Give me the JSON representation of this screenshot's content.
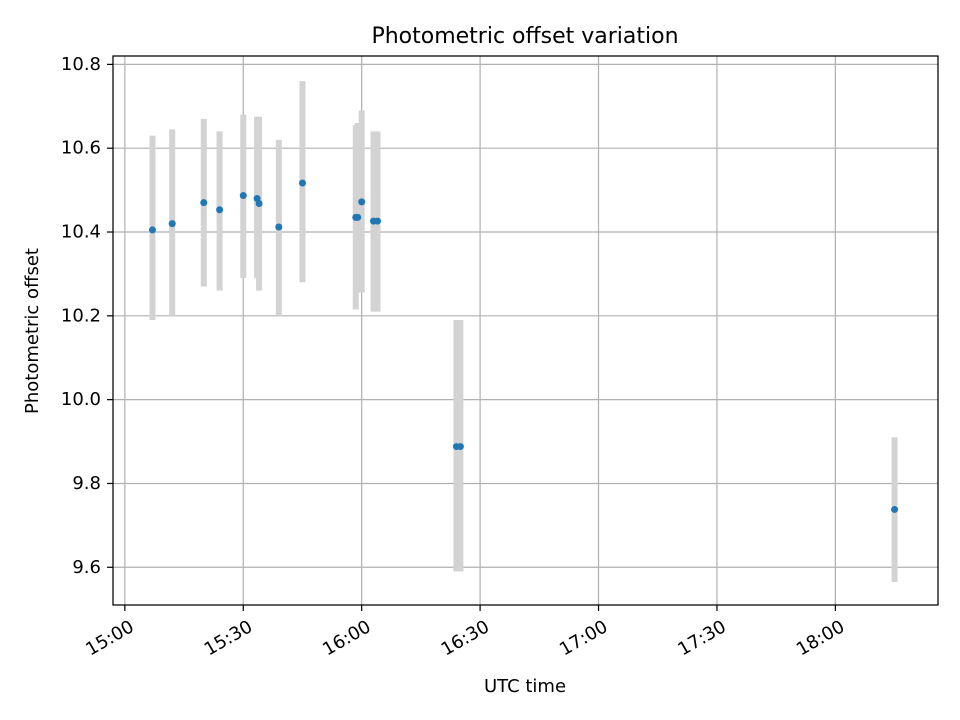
{
  "chart_data": {
    "type": "scatter",
    "title": "Photometric offset variation",
    "xlabel": "UTC time",
    "ylabel": "Photometric offset",
    "xlim": [
      "14:57",
      "18:26"
    ],
    "ylim": [
      9.51,
      10.82
    ],
    "x_ticks": [
      "15:00",
      "15:30",
      "16:00",
      "16:30",
      "17:00",
      "17:30",
      "18:00"
    ],
    "y_ticks": [
      "9.6",
      "9.8",
      "10.0",
      "10.2",
      "10.4",
      "10.6",
      "10.8"
    ],
    "grid": true,
    "colors": {
      "point": "#1f77b4",
      "errorbar": "#d3d3d3",
      "grid": "#b0b0b0",
      "axes": "#000000"
    },
    "series": [
      {
        "points": [
          {
            "x": "15:07",
            "y": 10.405,
            "y_low": 10.19,
            "y_high": 10.63
          },
          {
            "x": "15:12",
            "y": 10.42,
            "y_low": 10.2,
            "y_high": 10.645
          },
          {
            "x": "15:20",
            "y": 10.47,
            "y_low": 10.27,
            "y_high": 10.67
          },
          {
            "x": "15:24",
            "y": 10.453,
            "y_low": 10.26,
            "y_high": 10.64
          },
          {
            "x": "15:30",
            "y": 10.487,
            "y_low": 10.29,
            "y_high": 10.68
          },
          {
            "x": "15:33.5",
            "y": 10.48,
            "y_low": 10.29,
            "y_high": 10.675
          },
          {
            "x": "15:34",
            "y": 10.468,
            "y_low": 10.26,
            "y_high": 10.675
          },
          {
            "x": "15:39",
            "y": 10.412,
            "y_low": 10.2,
            "y_high": 10.62
          },
          {
            "x": "15:45",
            "y": 10.517,
            "y_low": 10.28,
            "y_high": 10.76
          },
          {
            "x": "15:58.5",
            "y": 10.435,
            "y_low": 10.215,
            "y_high": 10.655
          },
          {
            "x": "15:59",
            "y": 10.435,
            "y_low": 10.26,
            "y_high": 10.66
          },
          {
            "x": "16:00",
            "y": 10.472,
            "y_low": 10.255,
            "y_high": 10.69
          },
          {
            "x": "16:03",
            "y": 10.426,
            "y_low": 10.21,
            "y_high": 10.64
          },
          {
            "x": "16:04",
            "y": 10.426,
            "y_low": 10.21,
            "y_high": 10.64
          },
          {
            "x": "16:24",
            "y": 9.888,
            "y_low": 9.59,
            "y_high": 10.19
          },
          {
            "x": "16:25",
            "y": 9.888,
            "y_low": 9.59,
            "y_high": 10.19
          },
          {
            "x": "18:15",
            "y": 9.738,
            "y_low": 9.565,
            "y_high": 9.91
          }
        ]
      }
    ]
  }
}
